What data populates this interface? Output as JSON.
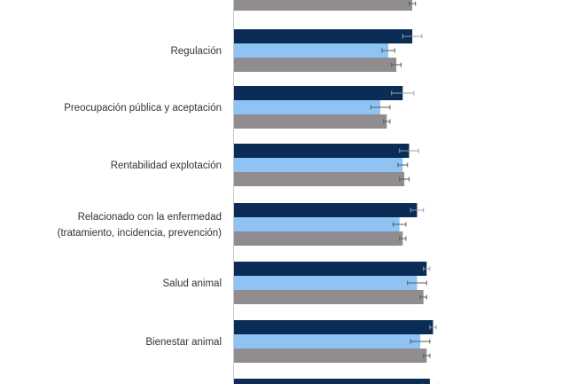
{
  "chart_data": {
    "type": "bar",
    "orientation": "horizontal",
    "grid": false,
    "legend": "none",
    "xlim": [
      0,
      6
    ],
    "categories": [
      {
        "id": "top-partial",
        "label_lines": []
      },
      {
        "id": "regulacion",
        "label_lines": [
          "Regulación"
        ]
      },
      {
        "id": "preocupacion",
        "label_lines": [
          "Preocupación pública y aceptación"
        ]
      },
      {
        "id": "rentabilidad",
        "label_lines": [
          "Rentabilidad explotación"
        ]
      },
      {
        "id": "enfermedad",
        "label_lines": [
          "Relacionado con la enfermedad",
          "(tratamiento, incidencia, prevención)"
        ]
      },
      {
        "id": "salud",
        "label_lines": [
          "Salud animal"
        ]
      },
      {
        "id": "bienestar",
        "label_lines": [
          "Bienestar animal"
        ]
      },
      {
        "id": "bottom-partial",
        "label_lines": []
      }
    ],
    "series": [
      {
        "color": "#0b2d55",
        "values": [
          null,
          5.6,
          5.3,
          5.5,
          5.75,
          6.05,
          6.25,
          6.15
        ],
        "errors": [
          null,
          0.3,
          0.35,
          0.3,
          0.2,
          0.1,
          0.1,
          0.25
        ]
      },
      {
        "color": "#8ec3f4",
        "values": [
          null,
          4.85,
          4.6,
          5.3,
          5.2,
          5.75,
          5.85,
          null
        ],
        "errors": [
          null,
          0.2,
          0.3,
          0.15,
          0.2,
          0.3,
          0.3,
          null
        ]
      },
      {
        "color": "#908c8f",
        "values": [
          5.6,
          5.1,
          4.8,
          5.35,
          5.3,
          5.95,
          6.05,
          null
        ],
        "errors": [
          0.1,
          0.15,
          0.1,
          0.15,
          0.1,
          0.1,
          0.1,
          null
        ]
      }
    ]
  }
}
